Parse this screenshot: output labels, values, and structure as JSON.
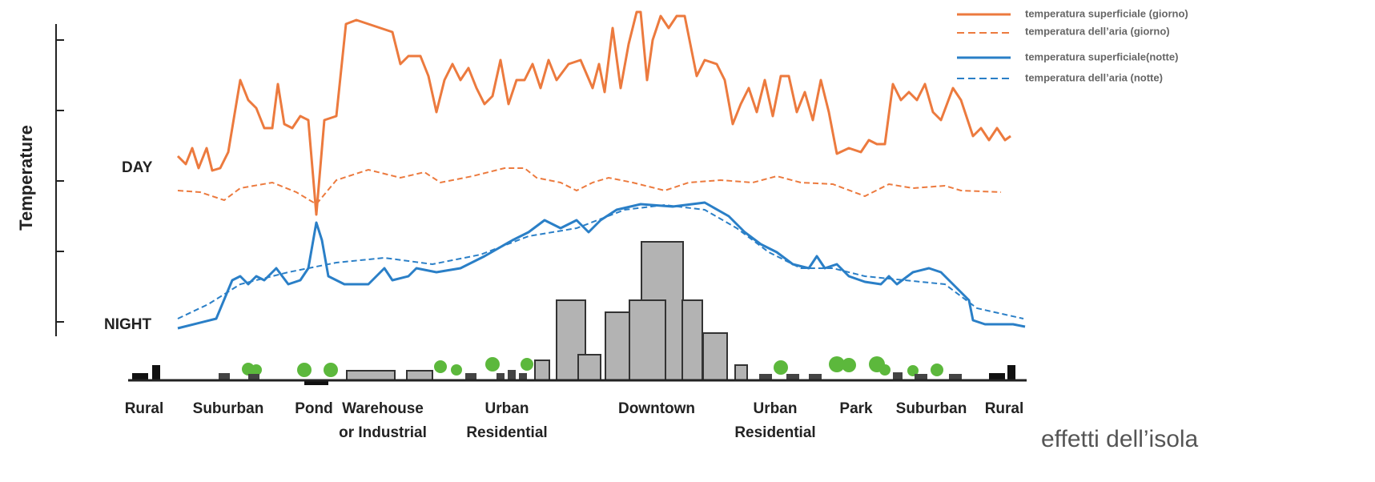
{
  "axis_label": "Temperature",
  "day_label": "DAY",
  "night_label": "NIGHT",
  "legend": [
    {
      "label": "temperatura superficiale (giorno)"
    },
    {
      "label": "temperatura dell’aria (giorno)"
    },
    {
      "label": "temperatura superficiale(notte)"
    },
    {
      "label": "temperatura dell’aria (notte)"
    }
  ],
  "zones": [
    {
      "lines": [
        "Rural"
      ]
    },
    {
      "lines": [
        "Suburban"
      ]
    },
    {
      "lines": [
        "Pond"
      ]
    },
    {
      "lines": [
        "Warehouse",
        "or Industrial"
      ]
    },
    {
      "lines": [
        "Urban",
        "Residential"
      ]
    },
    {
      "lines": [
        "Downtown"
      ]
    },
    {
      "lines": [
        "Urban",
        "Residential"
      ]
    },
    {
      "lines": [
        "Park"
      ]
    },
    {
      "lines": [
        "Suburban"
      ]
    },
    {
      "lines": [
        "Rural"
      ]
    }
  ],
  "caption": "effetti dell’isola"
}
